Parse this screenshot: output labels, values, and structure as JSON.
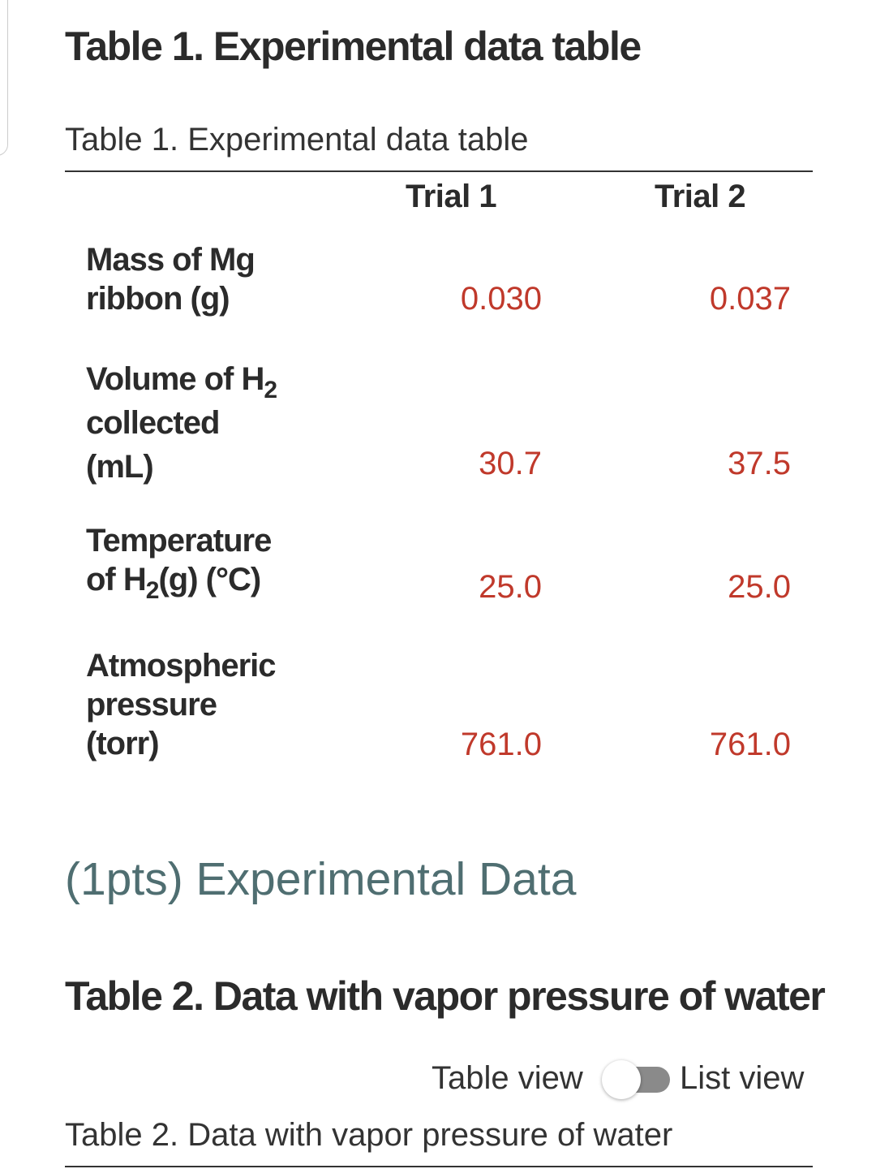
{
  "table1": {
    "heading": "Table 1. Experimental data table",
    "caption": "Table 1. Experimental data table",
    "columns": [
      "Trial 1",
      "Trial 2"
    ],
    "rows": [
      {
        "label_lines": [
          "Mass of Mg",
          "ribbon (g)"
        ],
        "trial1": "0.030",
        "trial2": "0.037"
      },
      {
        "label_line1_prefix": "Volume of H",
        "label_line1_sub": "2",
        "label_lines_rest": [
          "collected",
          "(mL)"
        ],
        "trial1": "30.7",
        "trial2": "37.5"
      },
      {
        "label_line1": "Temperature",
        "label_line2_prefix": "of H",
        "label_line2_sub": "2",
        "label_line2_suffix": "(g) (°C)",
        "trial1": "25.0",
        "trial2": "25.0"
      },
      {
        "label_lines": [
          "Atmospheric",
          "pressure",
          "(torr)"
        ],
        "trial1": "761.0",
        "trial2": "761.0"
      }
    ]
  },
  "section": {
    "title": "(1pts) Experimental Data"
  },
  "table2": {
    "heading": "Table 2. Data with vapor pressure of water",
    "view_toggle": {
      "left_label": "Table view",
      "right_label": "List view"
    },
    "caption": "Table 2. Data with vapor pressure of water"
  },
  "colors": {
    "value_text": "#c0392b",
    "section_title": "#4f6e71",
    "toggle_track": "#8a8a8a"
  }
}
